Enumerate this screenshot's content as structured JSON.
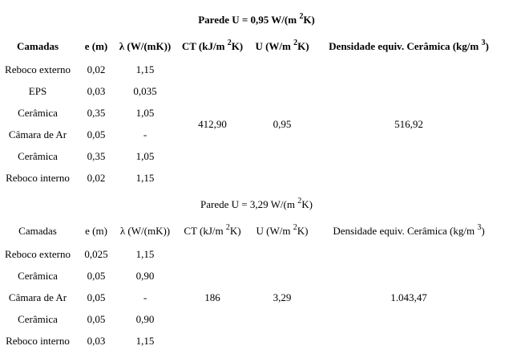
{
  "tables": [
    {
      "title": {
        "text": "Parede U = 0,95 W/(m ",
        "sup": "2",
        "tail": "K)"
      },
      "bold": true,
      "headers": [
        "Camadas",
        "e (m)",
        "λ (W/(mK))",
        {
          "text": "CT (kJ/m ",
          "sup": "2",
          "tail": "K)"
        },
        {
          "text": "U (W/m ",
          "sup": "2",
          "tail": "K)"
        },
        {
          "text": "Densidade equiv. Cerâmica (kg/m ",
          "sup": "3",
          "tail": ")"
        }
      ],
      "rows": [
        [
          "Reboco externo",
          "0,02",
          "1,15"
        ],
        [
          "EPS",
          "0,03",
          "0,035"
        ],
        [
          "Cerâmica",
          "0,35",
          "1,05"
        ],
        [
          "Câmara de Ar",
          "0,05",
          "-"
        ],
        [
          "Cerâmica",
          "0,35",
          "1,05"
        ],
        [
          "Reboco interno",
          "0,02",
          "1,15"
        ]
      ],
      "merged": [
        "412,90",
        "0,95",
        "516,92"
      ]
    },
    {
      "title": {
        "text": "Parede U = 3,29 W/(m ",
        "sup": "2",
        "tail": "K)"
      },
      "bold": false,
      "headers": [
        "Camadas",
        "e (m)",
        "λ (W/(mK))",
        {
          "text": "CT (kJ/m ",
          "sup": "2",
          "tail": "K)"
        },
        {
          "text": "U (W/m ",
          "sup": "2",
          "tail": "K)"
        },
        {
          "text": "Densidade equiv. Cerâmica (kg/m ",
          "sup": "3",
          "tail": ")"
        }
      ],
      "rows": [
        [
          "Reboco externo",
          "0,025",
          "1,15"
        ],
        [
          "Cerâmica",
          "0,05",
          "0,90"
        ],
        [
          "Câmara de Ar",
          "0,05",
          "-"
        ],
        [
          "Cerâmica",
          "0,05",
          "0,90"
        ],
        [
          "Reboco interno",
          "0,03",
          "1,15"
        ]
      ],
      "merged": [
        "186",
        "3,29",
        "1.043,47"
      ]
    }
  ]
}
